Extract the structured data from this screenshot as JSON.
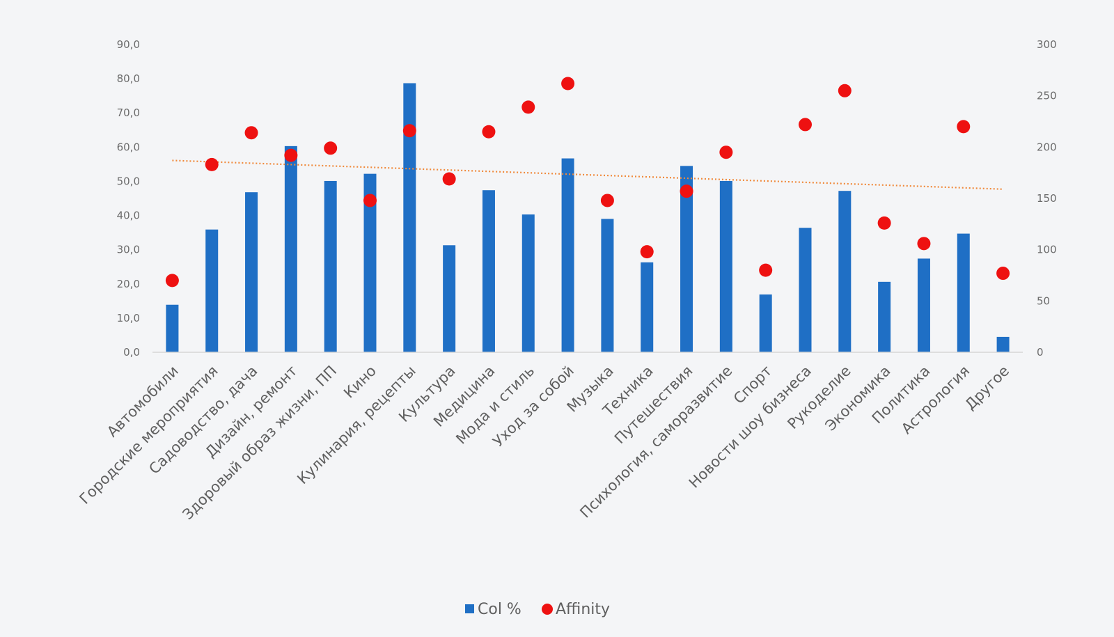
{
  "chart_data": {
    "type": "bar",
    "categories": [
      "Автомобили",
      "Городские мероприятия",
      "Садоводство, дача",
      "Дизайн, ремонт",
      "Здоровый образ жизни, ПП",
      "Кино",
      "Кулинария, рецепты",
      "Культура",
      "Медицина",
      "Мода и стиль",
      "Уход за собой",
      "Музыка",
      "Техника",
      "Путешествия",
      "Психология, саморазвитие",
      "Спорт",
      "Новости шоу бизнеса",
      "Рукоделие",
      "Экономика",
      "Политика",
      "Астрология",
      "Другое"
    ],
    "series": [
      {
        "name": "Col %",
        "type": "bar",
        "axis": "left",
        "color": "#1f6fc5",
        "values": [
          13.9,
          35.9,
          46.8,
          60.3,
          50.1,
          52.2,
          78.7,
          31.3,
          47.4,
          40.3,
          56.7,
          39.0,
          26.3,
          54.5,
          50.1,
          16.9,
          36.4,
          47.2,
          20.6,
          27.4,
          34.7,
          4.5
        ]
      },
      {
        "name": "Affinity",
        "type": "scatter",
        "axis": "right",
        "color": "#ee1111",
        "values": [
          70,
          183,
          214,
          192,
          199,
          148,
          216,
          169,
          215,
          239,
          262,
          148,
          98,
          157,
          195,
          80,
          222,
          255,
          126,
          106,
          220,
          77
        ]
      }
    ],
    "trendline": {
      "of": "Affinity",
      "type": "linear",
      "style": "dotted",
      "color": "#f08a3c",
      "start": 187,
      "end": 159
    },
    "y_left": {
      "min": 0,
      "max": 90,
      "step": 10,
      "ticks": [
        "0,0",
        "10,0",
        "20,0",
        "30,0",
        "40,0",
        "50,0",
        "60,0",
        "70,0",
        "80,0",
        "90,0"
      ]
    },
    "y_right": {
      "min": 0,
      "max": 300,
      "step": 50,
      "ticks": [
        "0",
        "50",
        "100",
        "150",
        "200",
        "250",
        "300"
      ]
    },
    "legend": {
      "position": "bottom",
      "items": [
        {
          "label": "Col %",
          "marker": "square",
          "color": "#1f6fc5"
        },
        {
          "label": "Affinity",
          "marker": "circle",
          "color": "#ee1111"
        }
      ]
    },
    "grid": false
  }
}
